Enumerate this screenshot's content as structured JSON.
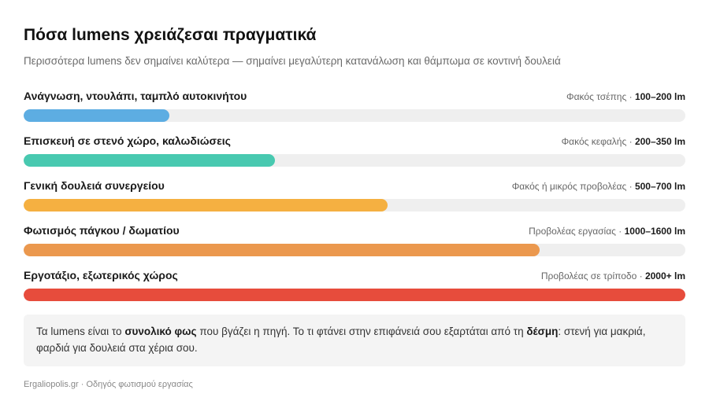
{
  "header": {
    "title": "Πόσα lumens χρειάζεσαι πραγματικά",
    "subtitle": "Περισσότερα lumens δεν σημαίνει καλύτερα — σημαίνει μεγαλύτερη κατανάλωση και θάμπωμα σε κοντινή δουλειά"
  },
  "chart_data": {
    "type": "bar",
    "orientation": "horizontal",
    "title": "Πόσα lumens χρειάζεσαι πραγματικά",
    "subtitle": "Περισσότερα lumens δεν σημαίνει καλύτερα — σημαίνει μεγαλύτερη κατανάλωση και θάμπωμα σε κοντινή δουλειά",
    "xlim": [
      0,
      1
    ],
    "categories": [
      "Ανάγνωση, ντουλάπι, ταμπλό αυτοκινήτου",
      "Επισκευή σε στενό χώρο, καλωδιώσεις",
      "Γενική δουλειά συνεργείου",
      "Φωτισμός πάγκου / δωματίου",
      "Εργοτάξιο, εξωτερικός χώρος"
    ],
    "items": [
      {
        "label": "Ανάγνωση, ντουλάπι, ταμπλό αυτοκινήτου",
        "device": "Φακός τσέπης",
        "lumens": "100–200 lm",
        "value": 0.22,
        "color": "#5dade2"
      },
      {
        "label": "Επισκευή σε στενό χώρο, καλωδιώσεις",
        "device": "Φακός κεφαλής",
        "lumens": "200–350 lm",
        "value": 0.38,
        "color": "#48c9b0"
      },
      {
        "label": "Γενική δουλειά συνεργείου",
        "device": "Φακός ή μικρός προβολέας",
        "lumens": "500–700 lm",
        "value": 0.55,
        "color": "#f5b041"
      },
      {
        "label": "Φωτισμός πάγκου / δωματίου",
        "device": "Προβολέας εργασίας",
        "lumens": "1000–1600 lm",
        "value": 0.78,
        "color": "#eb984e"
      },
      {
        "label": "Εργοτάξιο, εξωτερικός χώρος",
        "device": "Προβολέας σε τρίποδο",
        "lumens": "2000+ lm",
        "value": 1.0,
        "color": "#e74c3c"
      }
    ],
    "separator": " · ",
    "track_color": "#efefef"
  },
  "note": {
    "t1": "Τα lumens είναι το ",
    "b1": "συνολικό φως",
    "t2": " που βγάζει η πηγή. Το τι φτάνει στην επιφάνειά σου εξαρτάται από τη ",
    "b2": "δέσμη",
    "t3": ": στενή για μακριά, φαρδιά για δουλειά στα χέρια σου."
  },
  "footer": {
    "text": "Ergaliopolis.gr · Οδηγός φωτισμού εργασίας"
  }
}
